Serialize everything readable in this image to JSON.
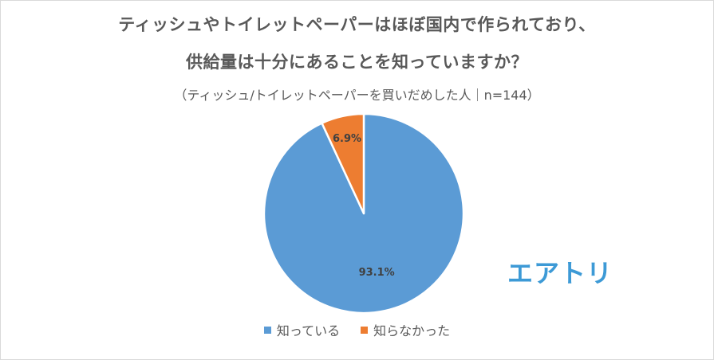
{
  "chart_data": {
    "type": "pie",
    "title_line1": "ティッシュやトイレットペーパーはほぼ国内で作られており、",
    "title_line2": "供給量は十分にあることを知っていますか？",
    "subtitle": "（ティッシュ/トイレットペーパーを買いだめした人｜n=144）",
    "slices": [
      {
        "label": "知っている",
        "value": 93.1,
        "value_label": "93.1%",
        "color": "#5b9bd5"
      },
      {
        "label": "知らなかった",
        "value": 6.9,
        "value_label": "6.9%",
        "color": "#ed7d31"
      }
    ],
    "legend_position": "bottom"
  },
  "branding": {
    "logo_text": "エアトリ",
    "logo_color": "#3d9ad6"
  }
}
